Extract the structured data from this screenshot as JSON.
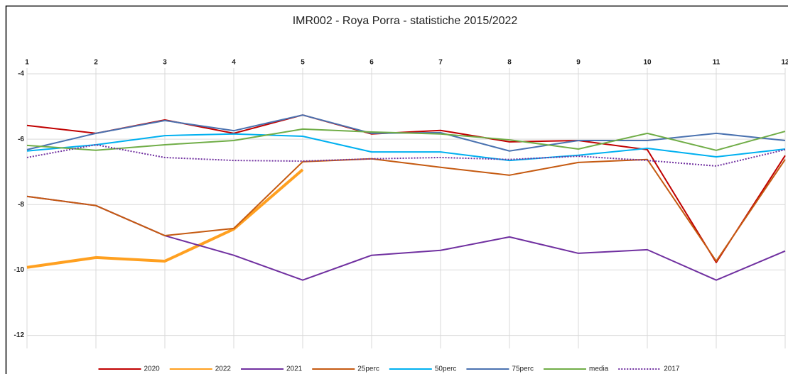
{
  "chart_data": {
    "type": "line",
    "title": "IMR002  - Roya Porra - statistiche 2015/2022",
    "categories": [
      "1",
      "2",
      "3",
      "4",
      "5",
      "6",
      "7",
      "8",
      "9",
      "10",
      "11",
      "12"
    ],
    "ylim": [
      -12.4,
      -4
    ],
    "yticks": [
      -4,
      -6,
      -8,
      -10,
      -12
    ],
    "grid": true,
    "legend": "bottom",
    "series": [
      {
        "name": "2020",
        "color": "#c00000",
        "width": 2,
        "style": "solid",
        "values": [
          -5.58,
          -5.82,
          -5.41,
          -5.82,
          -5.26,
          -5.84,
          -5.73,
          -6.08,
          -6.04,
          -6.32,
          -9.77,
          -6.5
        ]
      },
      {
        "name": "2022",
        "color": "#ffa020",
        "width": 4,
        "style": "solid",
        "values": [
          -9.92,
          -9.62,
          -9.73,
          -8.75,
          -6.93,
          null,
          null,
          null,
          null,
          null,
          null,
          null
        ]
      },
      {
        "name": "2021",
        "color": "#7030a0",
        "width": 2,
        "style": "solid",
        "values": [
          -7.75,
          -8.03,
          -8.95,
          -9.55,
          -10.31,
          -9.55,
          -9.4,
          -8.99,
          -9.49,
          -9.38,
          -10.31,
          -9.42
        ]
      },
      {
        "name": "25perc",
        "color": "#c55a11",
        "width": 2,
        "style": "solid",
        "values": [
          -7.75,
          -8.03,
          -8.95,
          -8.73,
          -6.69,
          -6.6,
          -6.86,
          -7.1,
          -6.71,
          -6.62,
          -9.73,
          -6.62
        ]
      },
      {
        "name": "50perc",
        "color": "#00b0f0",
        "width": 2,
        "style": "solid",
        "values": [
          -6.36,
          -6.17,
          -5.89,
          -5.84,
          -5.91,
          -6.39,
          -6.39,
          -6.65,
          -6.49,
          -6.28,
          -6.54,
          -6.3
        ]
      },
      {
        "name": "75perc",
        "color": "#4a72b0",
        "width": 2,
        "style": "solid",
        "values": [
          -6.32,
          -5.82,
          -5.43,
          -5.74,
          -5.26,
          -5.82,
          -5.8,
          -6.36,
          -6.04,
          -6.04,
          -5.82,
          -6.04
        ]
      },
      {
        "name": "media",
        "color": "#70ad47",
        "width": 2,
        "style": "solid",
        "values": [
          -6.19,
          -6.34,
          -6.17,
          -6.04,
          -5.69,
          -5.78,
          -5.84,
          -6.02,
          -6.3,
          -5.82,
          -6.34,
          -5.76
        ]
      },
      {
        "name": "2017",
        "color": "#7030a0",
        "width": 2,
        "style": "dotted",
        "values": [
          -6.56,
          -6.17,
          -6.56,
          -6.65,
          -6.67,
          -6.6,
          -6.56,
          -6.62,
          -6.52,
          -6.65,
          -6.82,
          -6.32
        ]
      }
    ]
  }
}
